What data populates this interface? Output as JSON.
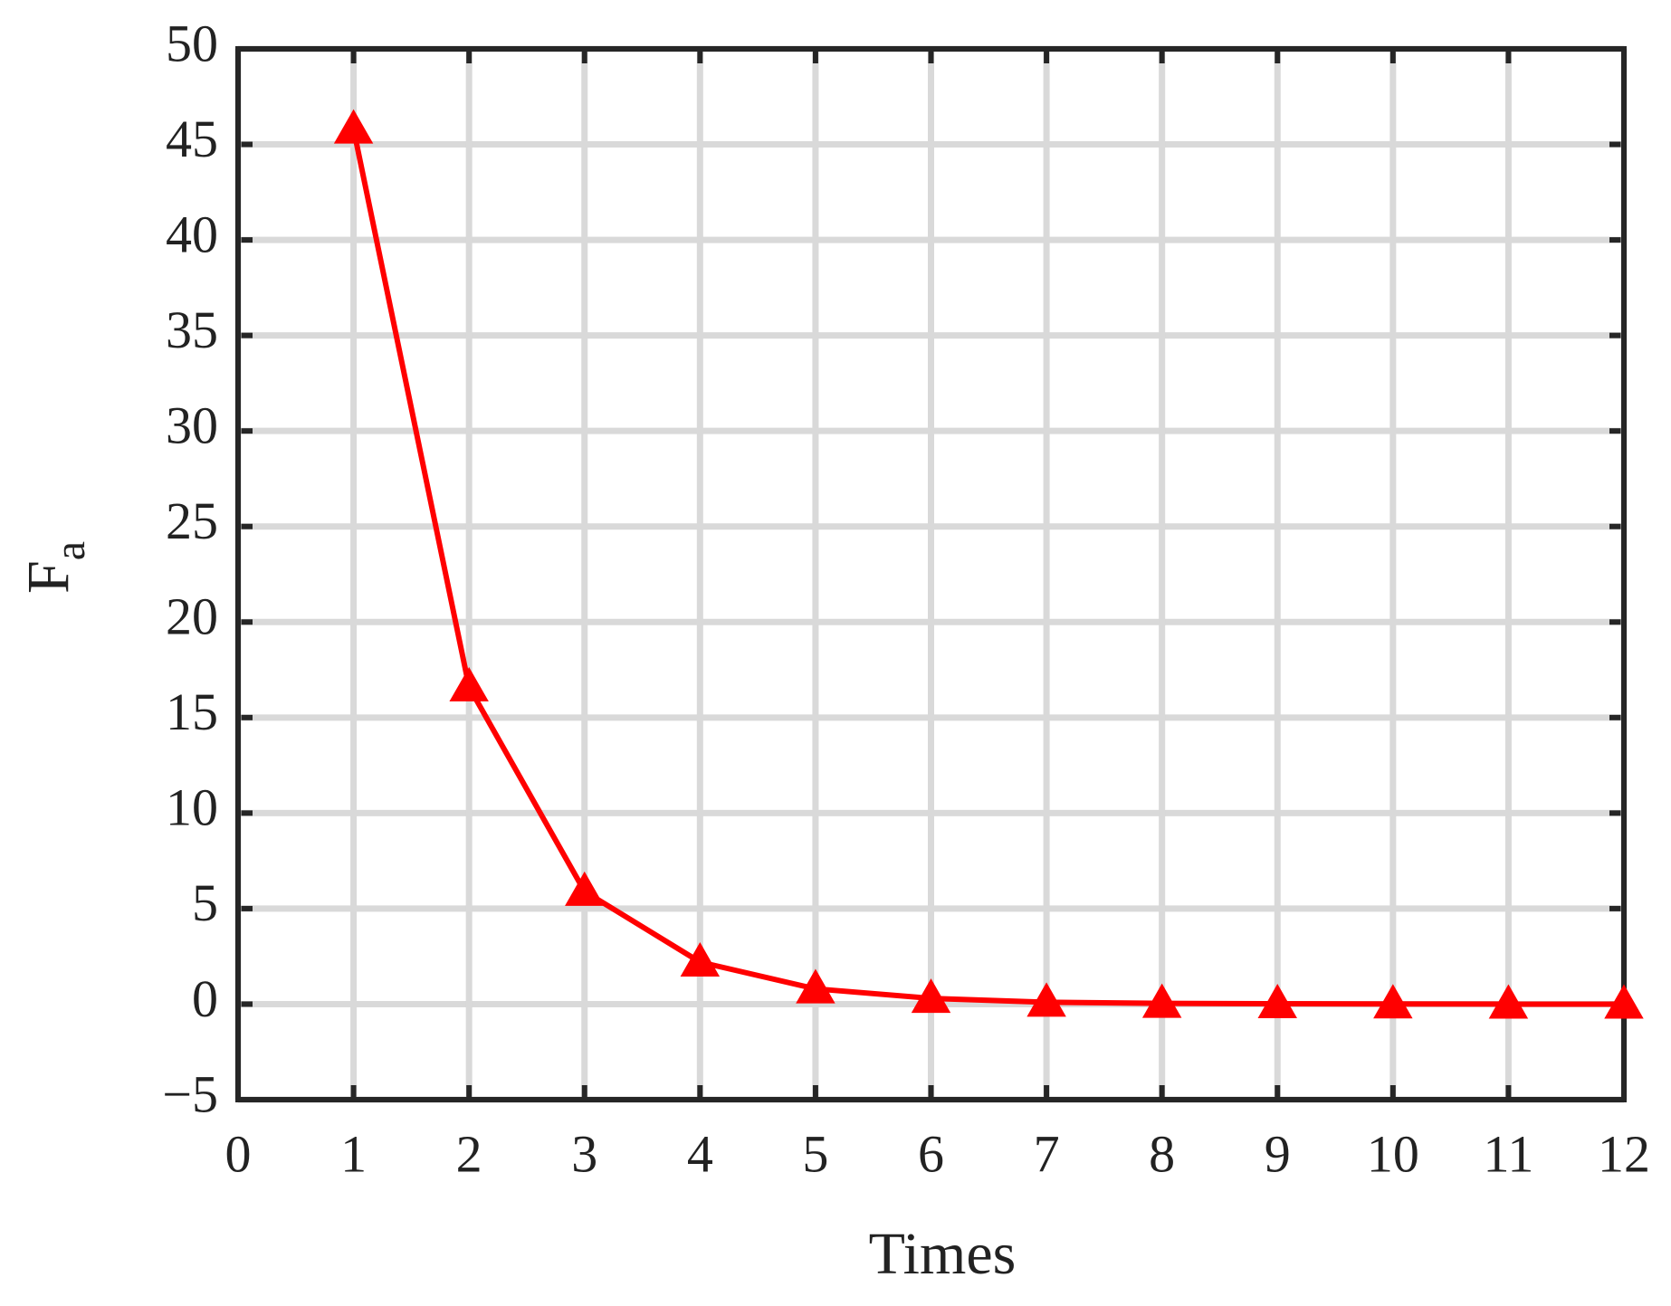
{
  "chart_data": {
    "type": "line",
    "xlabel": "Times",
    "ylabel": "F",
    "ylabel_subscript": "a",
    "x": [
      1,
      2,
      3,
      4,
      5,
      6,
      7,
      8,
      9,
      10,
      11,
      12
    ],
    "values": [
      45.8,
      16.6,
      5.9,
      2.2,
      0.8,
      0.3,
      0.1,
      0.04,
      0.02,
      0.01,
      0,
      0
    ],
    "color": "#ff0000",
    "marker": "triangle",
    "xlim": [
      0,
      12
    ],
    "xticks": [
      0,
      1,
      2,
      3,
      4,
      5,
      6,
      7,
      8,
      9,
      10,
      11,
      12
    ],
    "ylim": [
      -5,
      50
    ],
    "yticks": [
      {
        "value": -5,
        "label": "−5"
      },
      0,
      5,
      10,
      15,
      20,
      25,
      30,
      35,
      40,
      45,
      50
    ],
    "grid": true
  }
}
